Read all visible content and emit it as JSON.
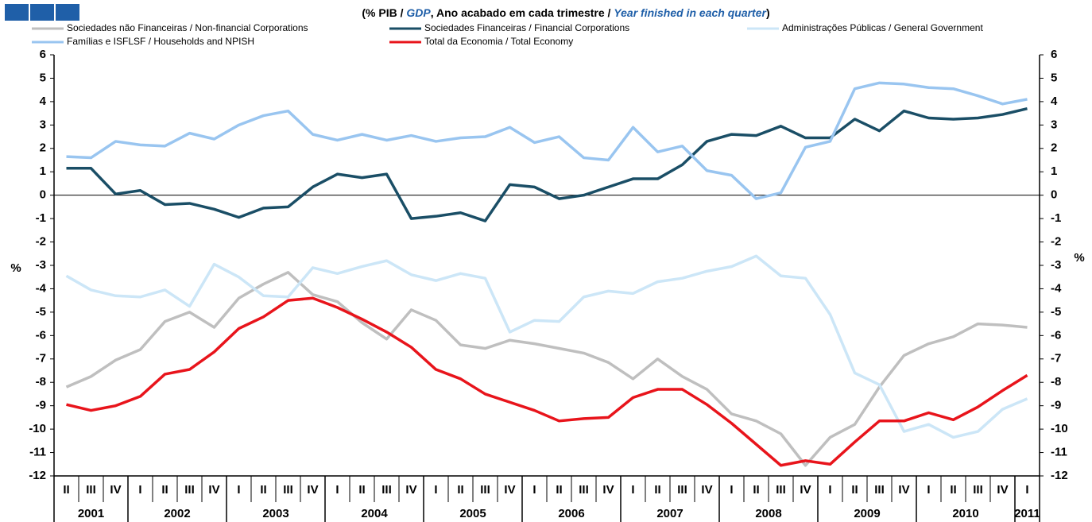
{
  "chart_data": {
    "type": "line",
    "title_parts": [
      {
        "text": "(% PIB / ",
        "emphasis": false
      },
      {
        "text": "GDP",
        "emphasis": true
      },
      {
        "text": ", Ano acabado em cada trimestre / ",
        "emphasis": false
      },
      {
        "text": "Year finished in each quarter",
        "emphasis": true
      },
      {
        "text": ")",
        "emphasis": false
      }
    ],
    "categories": [
      "II",
      "III",
      "IV",
      "I",
      "II",
      "III",
      "IV",
      "I",
      "II",
      "III",
      "IV",
      "I",
      "II",
      "III",
      "IV",
      "I",
      "II",
      "III",
      "IV",
      "I",
      "II",
      "III",
      "IV",
      "I",
      "II",
      "III",
      "IV",
      "I",
      "II",
      "III",
      "IV",
      "I",
      "II",
      "III",
      "IV",
      "I",
      "II",
      "III",
      "IV",
      "I"
    ],
    "years": [
      "2001",
      "2002",
      "2003",
      "2004",
      "2005",
      "2006",
      "2007",
      "2008",
      "2009",
      "2010",
      "2011"
    ],
    "ylabel": "%",
    "y2label": "%",
    "ylim": [
      -12,
      6
    ],
    "yticks": [
      -12,
      -11,
      -10,
      -9,
      -8,
      -7,
      -6,
      -5,
      -4,
      -3,
      -2,
      -1,
      0,
      1,
      2,
      3,
      4,
      5,
      6
    ],
    "y2lim": [
      -12,
      6
    ],
    "y2ticks": [
      -12,
      -11,
      -10,
      -9,
      -8,
      -7,
      -6,
      -5,
      -4,
      -3,
      -2,
      -1,
      0,
      1,
      2,
      3,
      4,
      5,
      6
    ],
    "series": [
      {
        "name": "Sociedades não Financeiras / Non-financial Corporations",
        "color": "#bfbfbf",
        "values": [
          -8.2,
          -7.75,
          -7.05,
          -6.6,
          -5.4,
          -5.0,
          -5.65,
          -4.4,
          -3.8,
          -3.3,
          -4.25,
          -4.55,
          -5.45,
          -6.15,
          -4.9,
          -5.35,
          -6.4,
          -6.55,
          -6.2,
          -6.35,
          -6.55,
          -6.75,
          -7.15,
          -7.85,
          -7.0,
          -7.75,
          -8.3,
          -9.35,
          -9.65,
          -10.2,
          -11.55,
          -10.35,
          -9.8,
          -8.2,
          -6.85,
          -6.35,
          -6.05,
          -5.5,
          -5.55,
          -5.65
        ]
      },
      {
        "name": "Sociedades Financeiras / Financial Corporations",
        "color": "#1a4e66",
        "values": [
          1.15,
          1.15,
          0.05,
          0.2,
          -0.4,
          -0.35,
          -0.6,
          -0.95,
          -0.55,
          -0.5,
          0.35,
          0.9,
          0.75,
          0.9,
          -1.0,
          -0.9,
          -0.75,
          -1.1,
          0.45,
          0.35,
          -0.15,
          0.0,
          0.35,
          0.7,
          0.7,
          1.3,
          2.3,
          2.6,
          2.55,
          2.95,
          2.45,
          2.45,
          3.25,
          2.75,
          3.6,
          3.3,
          3.25,
          3.3,
          3.45,
          3.7
        ]
      },
      {
        "name": "Administrações Públicas / General Government",
        "color": "#cce6f7",
        "values": [
          -3.45,
          -4.05,
          -4.3,
          -4.35,
          -4.05,
          -4.75,
          -2.95,
          -3.5,
          -4.3,
          -4.35,
          -3.1,
          -3.35,
          -3.05,
          -2.8,
          -3.4,
          -3.65,
          -3.35,
          -3.55,
          -5.85,
          -5.35,
          -5.4,
          -4.35,
          -4.1,
          -4.2,
          -3.7,
          -3.55,
          -3.25,
          -3.05,
          -2.6,
          -3.45,
          -3.55,
          -5.1,
          -7.6,
          -8.1,
          -10.1,
          -9.8,
          -10.35,
          -10.1,
          -9.15,
          -8.7
        ]
      },
      {
        "name": "Famílias e ISFLSF / Households and NPISH",
        "color": "#99c5f0",
        "values": [
          1.65,
          1.6,
          2.3,
          2.15,
          2.1,
          2.65,
          2.4,
          3.0,
          3.4,
          3.6,
          2.6,
          2.35,
          2.6,
          2.35,
          2.55,
          2.3,
          2.45,
          2.5,
          2.9,
          2.25,
          2.5,
          1.6,
          1.5,
          2.9,
          1.85,
          2.1,
          1.05,
          0.85,
          -0.15,
          0.1,
          2.05,
          2.3,
          4.55,
          4.8,
          4.75,
          4.6,
          4.55,
          4.25,
          3.9,
          4.1
        ]
      },
      {
        "name": "Total da Economia / Total Economy",
        "color": "#e8141b",
        "values": [
          -8.95,
          -9.2,
          -9.0,
          -8.6,
          -7.65,
          -7.45,
          -6.7,
          -5.7,
          -5.2,
          -4.5,
          -4.4,
          -4.8,
          -5.3,
          -5.85,
          -6.5,
          -7.45,
          -7.85,
          -8.5,
          -8.85,
          -9.2,
          -9.65,
          -9.55,
          -9.5,
          -8.65,
          -8.3,
          -8.3,
          -8.95,
          -9.75,
          -10.65,
          -11.55,
          -11.35,
          -11.5,
          -10.55,
          -9.65,
          -9.65,
          -9.3,
          -9.6,
          -9.05,
          -8.35,
          -7.7
        ]
      }
    ]
  }
}
